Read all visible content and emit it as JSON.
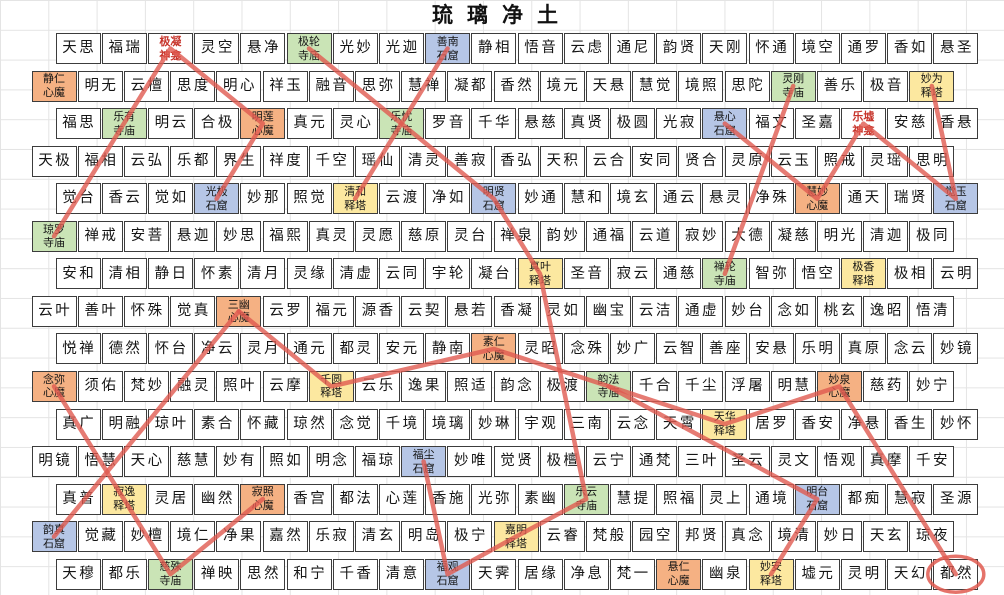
{
  "title": "琉璃净土",
  "colors": {
    "temple_bg": "#cae4b6",
    "grotto_bg": "#b6c6e6",
    "pagoda_bg": "#fce8a0",
    "demon_bg": "#f5b183",
    "shrine_text": "#c7352c",
    "route_line": "#e05a50",
    "grid_line": "#e4e4e4",
    "cell_border": "#3c3c3c"
  },
  "cell_types": {
    "G": "temple",
    "B": "grotto",
    "Y": "pagoda",
    "O": "demon",
    "R": "shrine"
  },
  "grid": {
    "rows": [
      [
        "天思",
        "福瑞",
        "R:极凝神龛",
        "灵空",
        "悬净",
        "G:极轮寺庙",
        "光妙",
        "光迦",
        "B:善南石窟",
        "静相",
        "悟音",
        "云虑",
        "通尼",
        "韵贤",
        "天刚",
        "怀通",
        "境空",
        "通罗",
        "香如",
        "悬圣"
      ],
      [
        "O:静仁心魔",
        "明无",
        "云檀",
        "思度",
        "明心",
        "祥玉",
        "融音",
        "思弥",
        "慧禅",
        "凝都",
        "香然",
        "境元",
        "天悬",
        "慧觉",
        "境照",
        "思陀",
        "G:灵刚寺庙",
        "善乐",
        "极音",
        "Y:妙为释塔"
      ],
      [
        "福思",
        "G:乐有寺庙",
        "明云",
        "合极",
        "O:明莲心魔",
        "真元",
        "灵心",
        "G:乐忧寺庙",
        "罗音",
        "千华",
        "悬慈",
        "真贤",
        "极圆",
        "光寂",
        "B:悬心石窟",
        "福文",
        "圣嘉",
        "R:乐墟神龛",
        "安慈",
        "香悬"
      ],
      [
        "天极",
        "福相",
        "云弘",
        "乐都",
        "界生",
        "祥度",
        "千空",
        "瑶仙",
        "清灵",
        "善寂",
        "香弘",
        "天积",
        "云合",
        "安同",
        "贤合",
        "灵原",
        "云玉",
        "照戒",
        "灵瑶",
        "思明"
      ],
      [
        "觉台",
        "香云",
        "觉如",
        "B:光极石窟",
        "妙那",
        "照觉",
        "Y:清和释塔",
        "云渡",
        "净如",
        "B:明贤石窟",
        "妙通",
        "慧和",
        "境玄",
        "通云",
        "悬灵",
        "净殊",
        "O:慧妙心魔",
        "通天",
        "瑞贤",
        "B:觉玉石窟"
      ],
      [
        "G:琼罗寺庙",
        "禅戒",
        "安菩",
        "悬迦",
        "妙思",
        "福熙",
        "真灵",
        "灵愿",
        "慈原",
        "灵台",
        "禅泉",
        "韵妙",
        "通福",
        "云道",
        "寂妙",
        "大德",
        "凝慈",
        "明光",
        "清迦",
        "极同"
      ],
      [
        "安和",
        "清相",
        "静日",
        "怀素",
        "清月",
        "灵缘",
        "清虚",
        "云同",
        "宇轮",
        "凝台",
        "Y:真叶释塔",
        "圣音",
        "寂云",
        "通慈",
        "G:禅轮寺庙",
        "智弥",
        "悟空",
        "Y:极香释塔",
        "极相",
        "云明"
      ],
      [
        "云叶",
        "善叶",
        "怀殊",
        "觉真",
        "O:三幽心魔",
        "云罗",
        "福元",
        "源香",
        "云契",
        "悬若",
        "香凝",
        "灵如",
        "幽宝",
        "云洁",
        "通虚",
        "妙台",
        "念如",
        "桃玄",
        "逸昭",
        "悟清"
      ],
      [
        "悦禅",
        "德然",
        "怀台",
        "净云",
        "灵月",
        "通元",
        "都灵",
        "安元",
        "静南",
        "O:素仁心魔",
        "灵昭",
        "念殊",
        "妙广",
        "云智",
        "善座",
        "安悬",
        "乐明",
        "真原",
        "念云",
        "妙镜"
      ],
      [
        "O:念弥心魔",
        "须佑",
        "梵妙",
        "融灵",
        "照叶",
        "云摩",
        "Y:千圆释塔",
        "云乐",
        "逸果",
        "照适",
        "韵念",
        "极渡",
        "G:韵法寺庙",
        "千合",
        "千尘",
        "浮屠",
        "明慧",
        "O:妙泉心魔",
        "慈药",
        "妙宁"
      ],
      [
        "真广",
        "明融",
        "琼叶",
        "素合",
        "怀藏",
        "琼然",
        "念觉",
        "千境",
        "境璃",
        "妙琳",
        "宇观",
        "三南",
        "云念",
        "天霄",
        "Y:天华释塔",
        "居罗",
        "香安",
        "净悬",
        "香生",
        "妙怀"
      ],
      [
        "明镜",
        "悟慧",
        "天心",
        "慈慧",
        "妙有",
        "照如",
        "明念",
        "福琼",
        "B:福尘石窟",
        "妙唯",
        "觉贤",
        "极檀",
        "云宁",
        "通梵",
        "三叶",
        "圣云",
        "灵文",
        "悟观",
        "真摩",
        "千安"
      ],
      [
        "真普",
        "Y:寂逸释塔",
        "灵居",
        "幽然",
        "O:寂照心魔",
        "香宫",
        "都法",
        "心莲",
        "香施",
        "光弥",
        "素幽",
        "G:乐云寺庙",
        "慧提",
        "照福",
        "灵上",
        "通境",
        "B:明台石窟",
        "都痴",
        "慧寂",
        "圣源"
      ],
      [
        "B:韵真石窟",
        "觉藏",
        "妙檀",
        "境仁",
        "净果",
        "嘉然",
        "乐寂",
        "清玄",
        "明岛",
        "极宁",
        "Y:嘉明释塔",
        "云睿",
        "梵般",
        "园空",
        "邦贤",
        "真念",
        "境清",
        "妙日",
        "天玄",
        "琼夜"
      ],
      [
        "天穆",
        "都乐",
        "G:慈殊寺庙",
        "禅映",
        "思然",
        "和宁",
        "千香",
        "清意",
        "B:福观石窟",
        "天霁",
        "居缘",
        "净息",
        "梵一",
        "O:悬仁心魔",
        "幽泉",
        "Y:妙安释塔",
        "墟元",
        "灵明",
        "天幻",
        "都然"
      ]
    ]
  },
  "routes": [
    [
      [
        6,
        1
      ],
      [
        1,
        3
      ],
      [
        3,
        5
      ],
      [
        5,
        4
      ]
    ],
    [
      [
        5,
        7
      ],
      [
        1,
        9
      ]
    ],
    [
      [
        1,
        6
      ],
      [
        5,
        10
      ],
      [
        7,
        11
      ],
      [
        13,
        12
      ],
      [
        14,
        11
      ],
      [
        15,
        9
      ],
      [
        12,
        9
      ]
    ],
    [
      [
        8,
        5
      ],
      [
        10,
        7
      ],
      [
        9,
        10
      ],
      [
        11,
        15
      ],
      [
        10,
        18
      ],
      [
        15,
        20
      ]
    ],
    [
      [
        8,
        5
      ],
      [
        14,
        1
      ]
    ],
    [
      [
        10,
        1
      ],
      [
        15,
        3
      ],
      [
        13,
        5
      ]
    ],
    [
      [
        10,
        13
      ],
      [
        13,
        17
      ],
      [
        15,
        16
      ]
    ],
    [
      [
        2,
        17
      ],
      [
        7,
        15
      ]
    ],
    [
      [
        3,
        15
      ],
      [
        5,
        17
      ],
      [
        3,
        18
      ],
      [
        5,
        20
      ],
      [
        2,
        20
      ]
    ]
  ],
  "marker": {
    "row": 15,
    "col": 20,
    "label": "都然"
  }
}
